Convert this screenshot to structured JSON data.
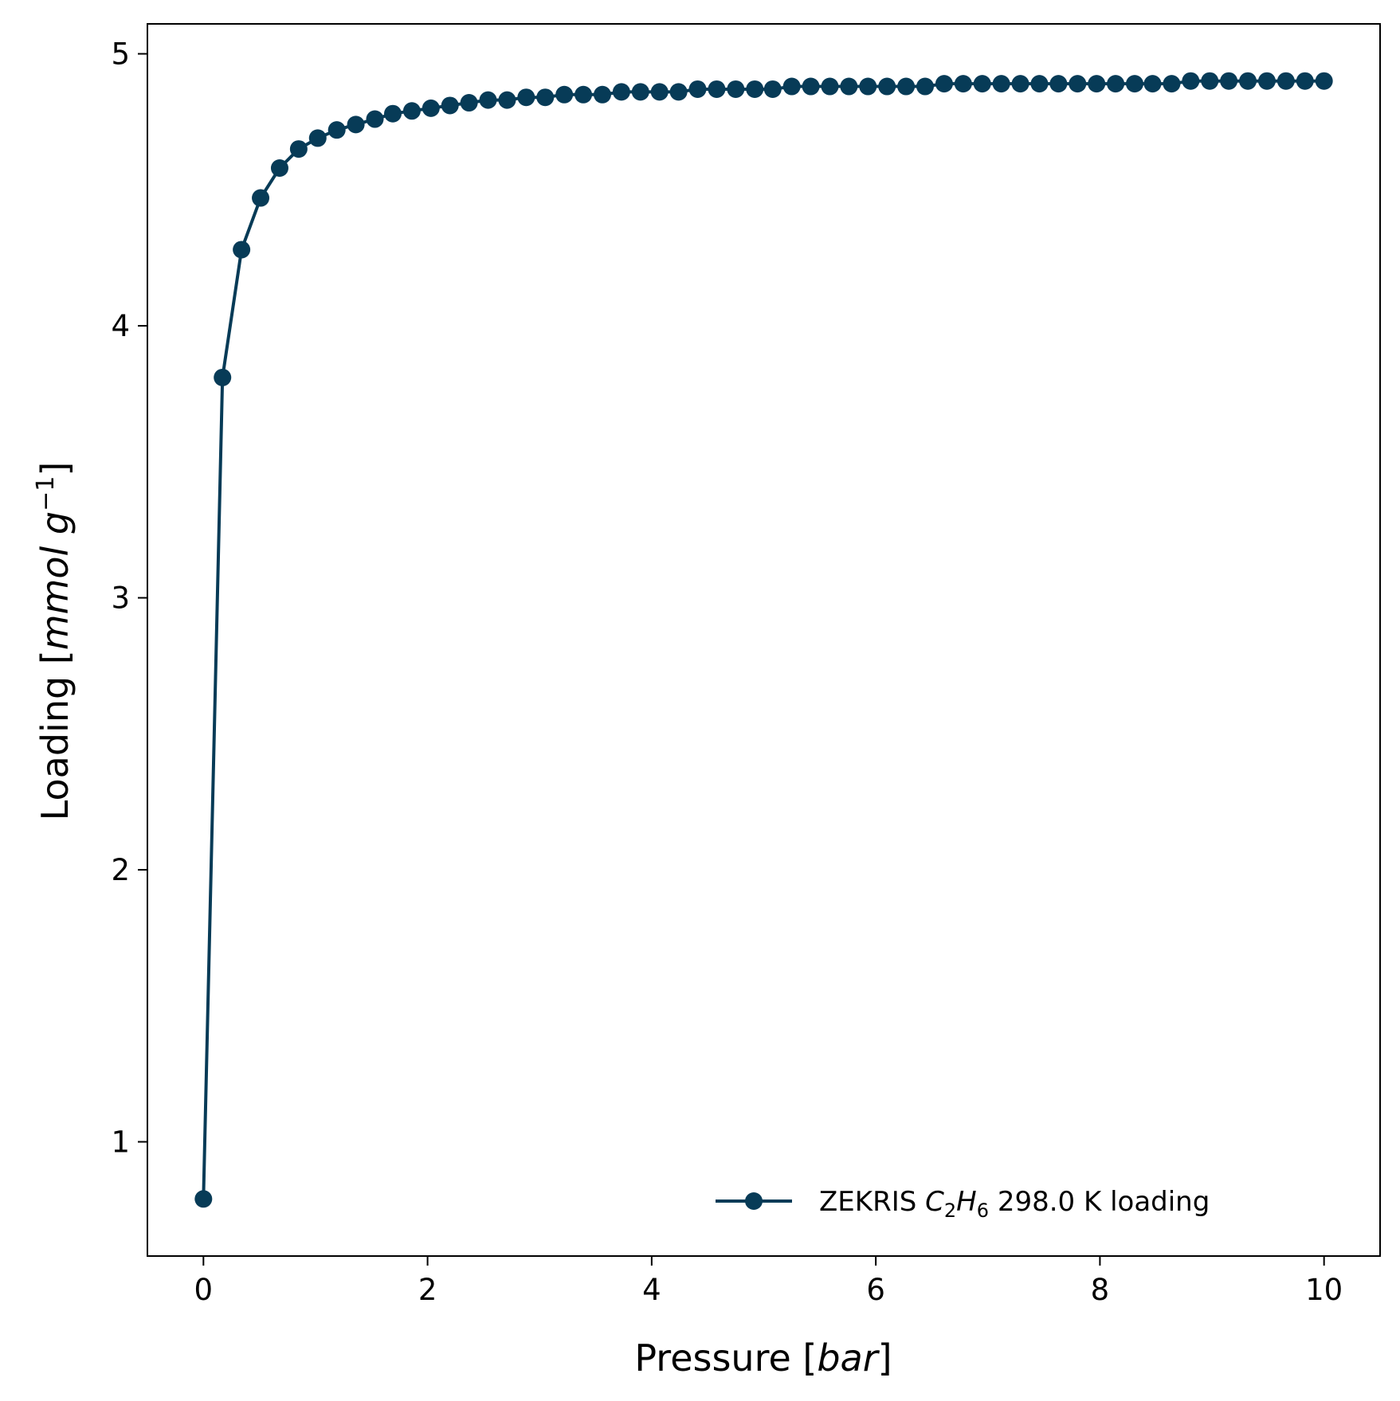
{
  "chart_data": {
    "type": "line",
    "xlabel": "Pressure [bar]",
    "xlabel_parts": {
      "prefix": "Pressure [",
      "unit": "bar",
      "suffix": "]"
    },
    "ylabel": "Loading [mmol g^-1]",
    "ylabel_parts": {
      "prefix": "Loading [",
      "unit": "mmol g",
      "sup": "−1",
      "suffix": "]"
    },
    "xlim": [
      -0.5,
      10.5
    ],
    "ylim": [
      0.58,
      5.11
    ],
    "xticks": [
      0,
      2,
      4,
      6,
      8,
      10
    ],
    "xtick_labels": [
      "0",
      "2",
      "4",
      "6",
      "8",
      "10"
    ],
    "yticks": [
      1,
      2,
      3,
      4,
      5
    ],
    "ytick_labels": [
      "1",
      "2",
      "3",
      "4",
      "5"
    ],
    "grid": false,
    "legend_position": "lower-right",
    "series": [
      {
        "name": "ZEKRIS C2H6 298.0 K loading",
        "legend_parts": {
          "prefix": "ZEKRIS ",
          "c": "C",
          "c_sub": "2",
          "h": "H",
          "h_sub": "6",
          "suffix": " 298.0 K loading"
        },
        "color": "#073B57",
        "marker": "circle",
        "x": [
          0.0,
          0.17,
          0.34,
          0.51,
          0.68,
          0.85,
          1.02,
          1.19,
          1.36,
          1.53,
          1.69,
          1.86,
          2.03,
          2.2,
          2.37,
          2.54,
          2.71,
          2.88,
          3.05,
          3.22,
          3.39,
          3.56,
          3.73,
          3.9,
          4.07,
          4.24,
          4.41,
          4.58,
          4.75,
          4.92,
          5.08,
          5.25,
          5.42,
          5.59,
          5.76,
          5.93,
          6.1,
          6.27,
          6.44,
          6.61,
          6.78,
          6.95,
          7.12,
          7.29,
          7.46,
          7.63,
          7.8,
          7.97,
          8.14,
          8.31,
          8.47,
          8.64,
          8.81,
          8.98,
          9.15,
          9.32,
          9.49,
          9.66,
          9.83,
          10.0
        ],
        "y": [
          0.79,
          3.81,
          4.28,
          4.47,
          4.58,
          4.65,
          4.69,
          4.72,
          4.74,
          4.76,
          4.78,
          4.79,
          4.8,
          4.81,
          4.82,
          4.83,
          4.83,
          4.84,
          4.84,
          4.85,
          4.85,
          4.85,
          4.86,
          4.86,
          4.86,
          4.86,
          4.87,
          4.87,
          4.87,
          4.87,
          4.87,
          4.88,
          4.88,
          4.88,
          4.88,
          4.88,
          4.88,
          4.88,
          4.88,
          4.89,
          4.89,
          4.89,
          4.89,
          4.89,
          4.89,
          4.89,
          4.89,
          4.89,
          4.89,
          4.89,
          4.89,
          4.89,
          4.9,
          4.9,
          4.9,
          4.9,
          4.9,
          4.9,
          4.9,
          4.9
        ]
      }
    ]
  }
}
